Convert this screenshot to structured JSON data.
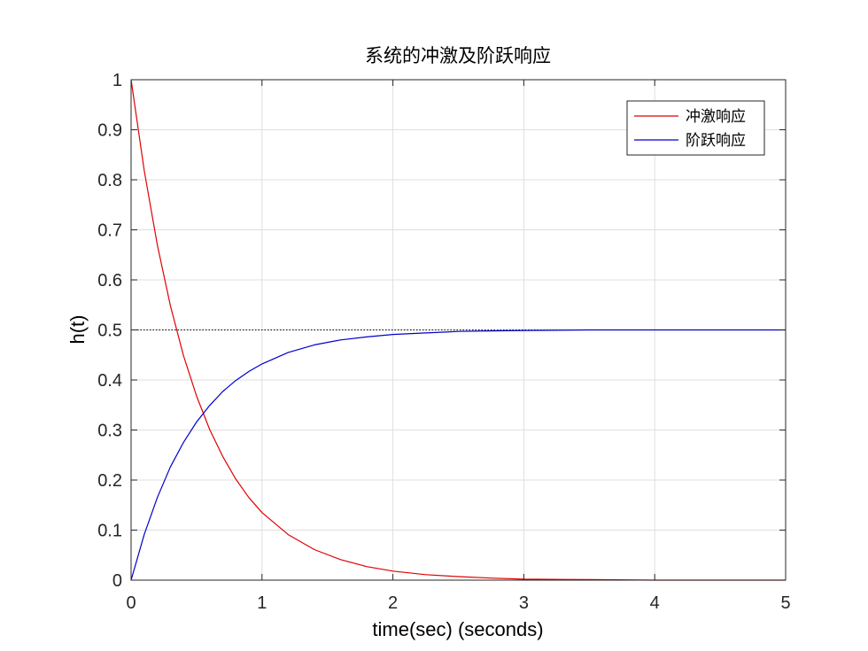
{
  "chart_data": {
    "type": "line",
    "title": "系统的冲激及阶跃响应",
    "xlabel": "time(sec) (seconds)",
    "ylabel": "h(t)",
    "xlim": [
      0,
      5
    ],
    "ylim": [
      0,
      1
    ],
    "xticks": [
      0,
      1,
      2,
      3,
      4,
      5
    ],
    "yticks": [
      0,
      0.1,
      0.2,
      0.3,
      0.4,
      0.5,
      0.6,
      0.7,
      0.8,
      0.9,
      1
    ],
    "xtick_labels": [
      "0",
      "1",
      "2",
      "3",
      "4",
      "5"
    ],
    "ytick_labels": [
      "0",
      "0.1",
      "0.2",
      "0.3",
      "0.4",
      "0.5",
      "0.6",
      "0.7",
      "0.8",
      "0.9",
      "1"
    ],
    "grid": true,
    "legend_position": "top-right",
    "reference_line": {
      "y": 0.5,
      "style": "dotted",
      "color": "#000000"
    },
    "x": [
      0,
      0.1,
      0.2,
      0.3,
      0.4,
      0.5,
      0.6,
      0.7,
      0.8,
      0.9,
      1.0,
      1.2,
      1.4,
      1.6,
      1.8,
      2.0,
      2.25,
      2.5,
      2.75,
      3.0,
      3.5,
      4.0,
      4.5,
      5.0
    ],
    "series": [
      {
        "name": "冲激响应",
        "color": "#e00000",
        "values": [
          1.0,
          0.819,
          0.67,
          0.549,
          0.449,
          0.368,
          0.301,
          0.247,
          0.202,
          0.165,
          0.135,
          0.091,
          0.061,
          0.041,
          0.027,
          0.018,
          0.011,
          0.007,
          0.004,
          0.002,
          0.001,
          0.0,
          0.0,
          0.0
        ]
      },
      {
        "name": "阶跃响应",
        "color": "#0000cc",
        "values": [
          0.0,
          0.091,
          0.165,
          0.226,
          0.275,
          0.316,
          0.349,
          0.377,
          0.399,
          0.417,
          0.432,
          0.455,
          0.47,
          0.48,
          0.486,
          0.491,
          0.494,
          0.497,
          0.498,
          0.499,
          0.5,
          0.5,
          0.5,
          0.5
        ]
      }
    ]
  }
}
